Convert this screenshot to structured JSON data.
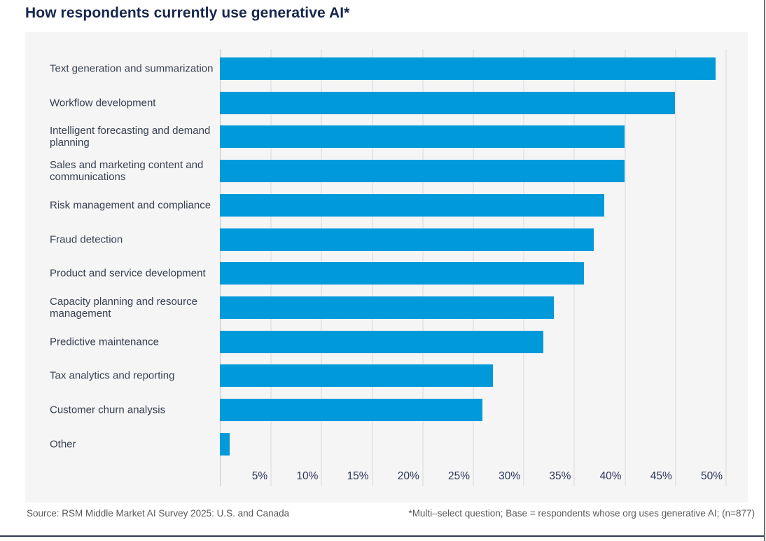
{
  "title": "How respondents currently use generative AI*",
  "footer": {
    "source": "Source: RSM Middle Market AI Survey 2025: U.S. and Canada",
    "note": "*Multi–select question; Base = respondents whose org uses generative AI; (n=877)"
  },
  "colors": {
    "bar": "#0099da",
    "panel_background": "#f5f5f6",
    "gridline": "#e7e7ea",
    "axis_line": "#c3c5c9",
    "title_text": "#16264c",
    "category_text": "#36404f",
    "tick_text": "#2b3556",
    "footer_text": "#595959",
    "bottom_rule": "#2e3b50",
    "frame_border": "#737373"
  },
  "chart_data": {
    "type": "bar",
    "orientation": "horizontal",
    "title": "How respondents currently use generative AI*",
    "categories": [
      "Text generation and summarization",
      "Workflow development",
      "Intelligent forecasting and demand planning",
      "Sales and marketing content and communications",
      "Risk management and compliance",
      "Fraud detection",
      "Product and service development",
      "Capacity planning and resource management",
      "Predictive maintenance",
      "Tax analytics and reporting",
      "Customer churn analysis",
      "Other"
    ],
    "values": [
      49,
      45,
      40,
      40,
      38,
      37,
      36,
      33,
      32,
      27,
      26,
      1
    ],
    "unit": "%",
    "xlim": [
      0,
      52
    ],
    "x_tick_values": [
      5,
      10,
      15,
      20,
      25,
      30,
      35,
      40,
      45,
      50
    ],
    "x_tick_labels": [
      "5%",
      "10%",
      "15%",
      "20%",
      "25%",
      "30%",
      "35%",
      "40%",
      "45%",
      "50%"
    ],
    "grid": true,
    "legend": false
  }
}
